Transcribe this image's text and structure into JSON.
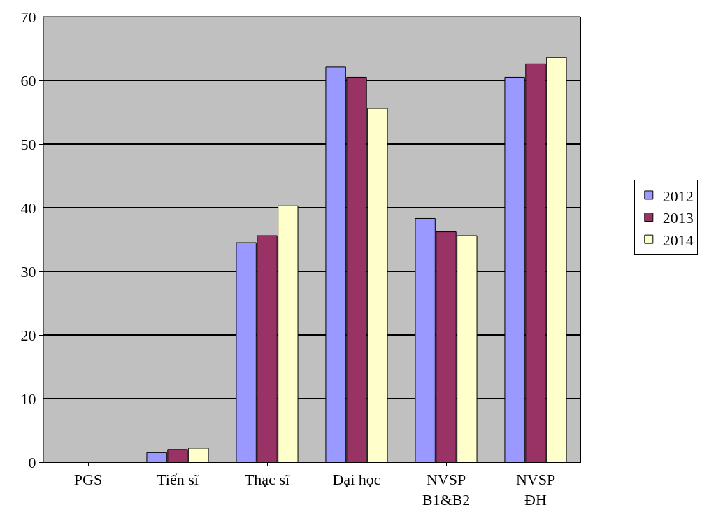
{
  "chart_data": {
    "type": "bar",
    "categories": [
      "PGS",
      "Tiến sĩ",
      "Thạc sĩ",
      "Đại học",
      "NVSP\nB1&B2",
      "NVSP\nĐH"
    ],
    "series": [
      {
        "name": "2012",
        "color": "#9999ff",
        "values": [
          0,
          1.5,
          34.5,
          62.1,
          38.3,
          60.5
        ]
      },
      {
        "name": "2013",
        "color": "#993366",
        "values": [
          0,
          2.0,
          35.6,
          60.5,
          36.2,
          62.6
        ]
      },
      {
        "name": "2014",
        "color": "#ffffcc",
        "values": [
          0,
          2.2,
          40.3,
          55.6,
          35.6,
          63.6
        ]
      }
    ],
    "ylim": [
      0,
      70
    ],
    "yticks": [
      0,
      10,
      20,
      30,
      40,
      50,
      60,
      70
    ],
    "grid": "y",
    "legend": "right"
  }
}
